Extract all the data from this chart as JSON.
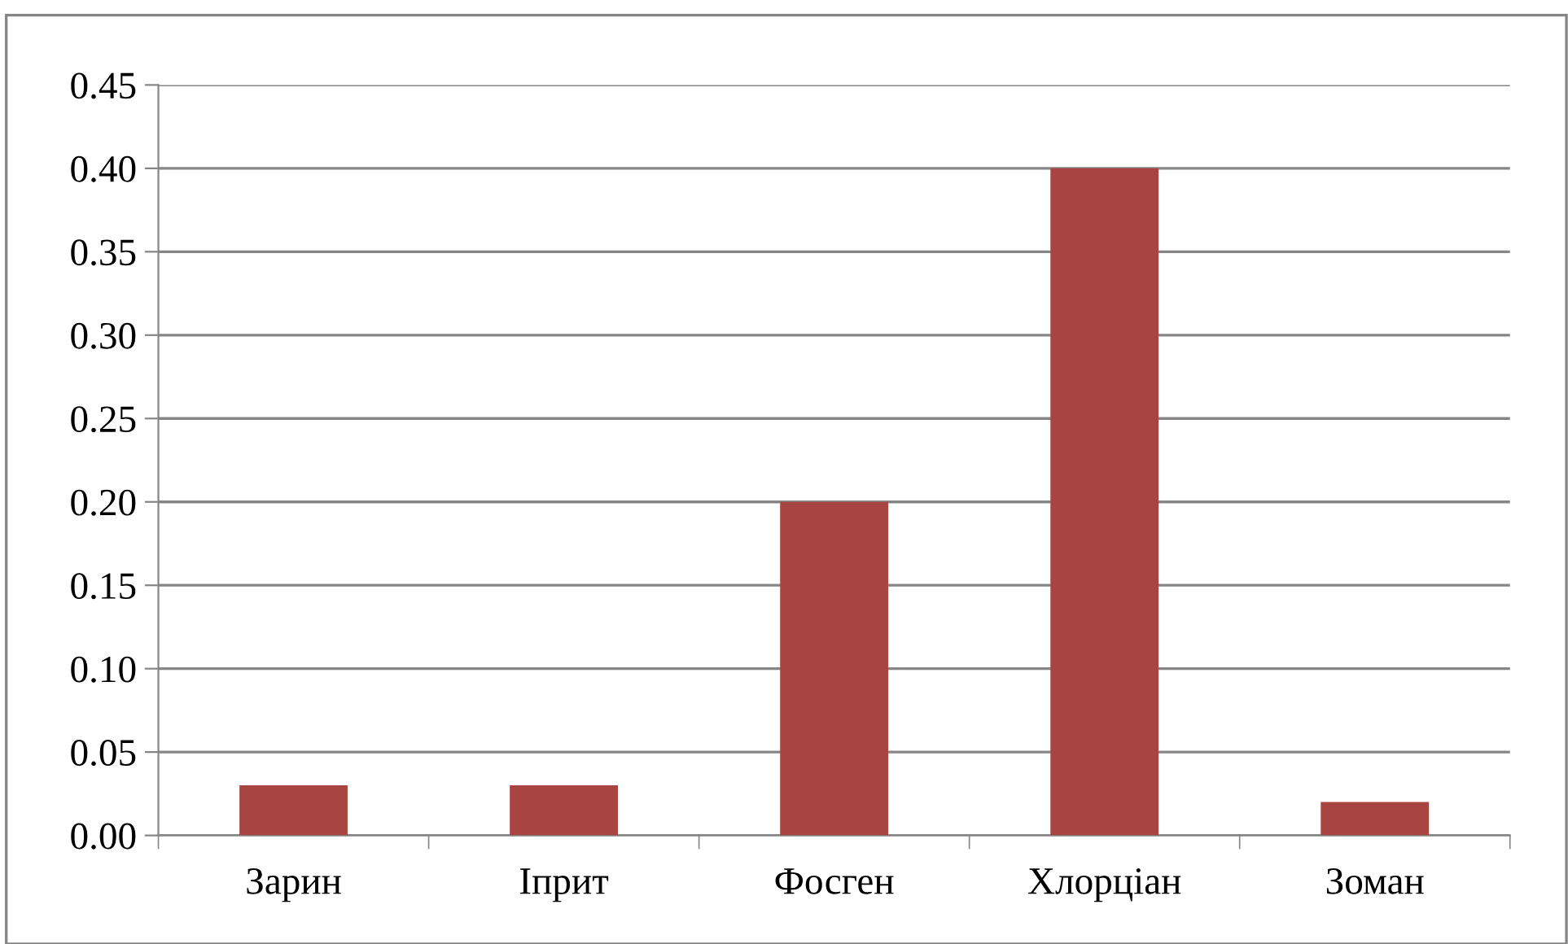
{
  "chart_data": {
    "type": "bar",
    "categories": [
      "Зарин",
      "Іприт",
      "Фосген",
      "Хлорціан",
      "Зоман"
    ],
    "values": [
      0.03,
      0.03,
      0.2,
      0.4,
      0.02
    ],
    "color": "#a84542",
    "ylim": [
      0,
      0.45
    ],
    "yticks": [
      {
        "value": 0,
        "label": "0.00"
      },
      {
        "value": 0.05,
        "label": "0.05"
      },
      {
        "value": 0.1,
        "label": "0.10"
      },
      {
        "value": 0.15,
        "label": "0.15"
      },
      {
        "value": 0.2,
        "label": "0.20"
      },
      {
        "value": 0.25,
        "label": "0.25"
      },
      {
        "value": 0.3,
        "label": "0.30"
      },
      {
        "value": 0.35,
        "label": "0.35"
      },
      {
        "value": 0.4,
        "label": "0.40"
      },
      {
        "value": 0.45,
        "label": "0.45"
      }
    ],
    "grid": "y"
  }
}
